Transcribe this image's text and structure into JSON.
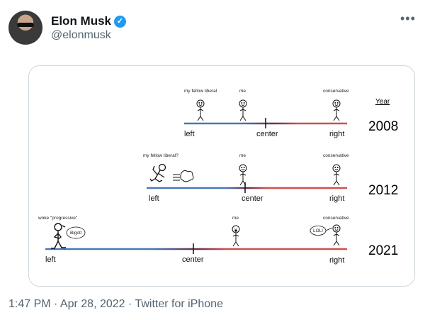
{
  "tweet": {
    "author_name": "Elon Musk",
    "handle": "@elonmusk",
    "verified": true,
    "more_icon": "ellipsis-icon",
    "timestamp": "1:47 PM · Apr 28, 2022 · Twitter for iPhone"
  },
  "image": {
    "year_header": "Year",
    "axis": {
      "left": "left",
      "center": "center",
      "right": "right"
    },
    "colors": {
      "left": "#4a78b5",
      "right": "#d0504c"
    },
    "rows": [
      {
        "year": "2008",
        "liberal_label": "my fellow liberal",
        "me_label": "me",
        "conservative_label": "conservative"
      },
      {
        "year": "2012",
        "liberal_label": "my fellow liberal?",
        "me_label": "me",
        "conservative_label": "conservative"
      },
      {
        "year": "2021",
        "liberal_label": "woke \"progressive\"",
        "liberal_speech": "Bigot!",
        "me_label": "me",
        "conservative_label": "conservative",
        "conservative_speech": "LOL!"
      }
    ]
  }
}
